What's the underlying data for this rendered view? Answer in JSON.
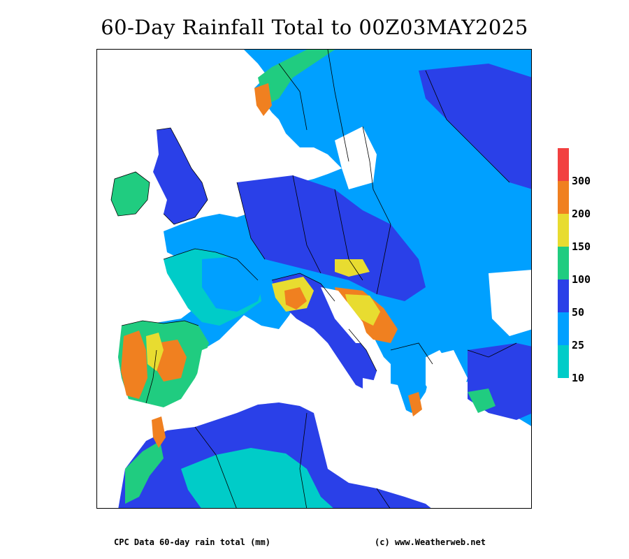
{
  "title": "60-Day Rainfall Total to 00Z03MAY2025",
  "footer": {
    "left": "CPC Data 60-day rain total (mm)",
    "right": "(c) www.Weatherweb.net"
  },
  "legend": {
    "bands": [
      {
        "color": "#f24040",
        "label": "300"
      },
      {
        "color": "#f08020",
        "label": "200"
      },
      {
        "color": "#e8dc30",
        "label": "150"
      },
      {
        "color": "#20cc80",
        "label": "100"
      },
      {
        "color": "#2a40e8",
        "label": "50"
      },
      {
        "color": "#00a0ff",
        "label": "25"
      },
      {
        "color": "#00ccc8",
        "label": "10"
      }
    ]
  },
  "palette": {
    "cyan": "#00ccc8",
    "lightblue": "#00a0ff",
    "blue": "#2a40e8",
    "green": "#20cc80",
    "yellow": "#e8dc30",
    "orange": "#f08020",
    "red": "#f24040",
    "sea": "#ffffff",
    "border": "#000000"
  }
}
